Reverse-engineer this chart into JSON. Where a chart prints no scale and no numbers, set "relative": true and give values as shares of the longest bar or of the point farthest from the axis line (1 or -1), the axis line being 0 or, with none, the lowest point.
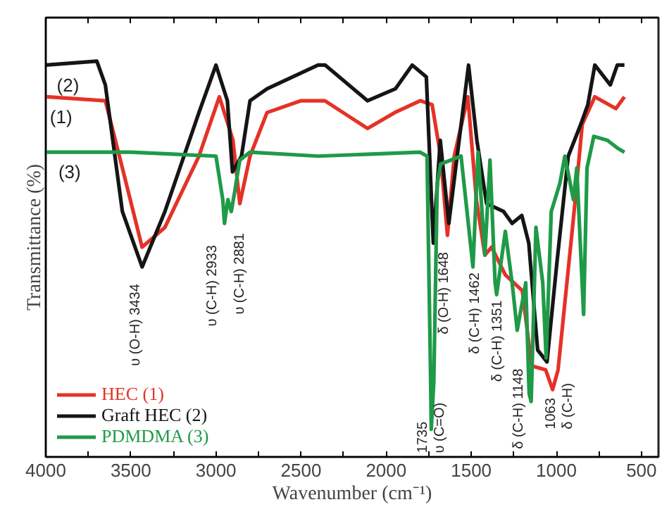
{
  "chart_data": {
    "type": "line",
    "relative": true,
    "xlabel": "Wavenumber (cm⁻¹)",
    "ylabel": "Transmittance (%)",
    "xlim": [
      4000,
      400
    ],
    "xticks": [
      4000,
      {
        "value": 3750,
        "label": null
      },
      3500,
      {
        "value": 3250,
        "label": null
      },
      3000,
      {
        "value": 2750,
        "label": null
      },
      2500,
      {
        "value": 2250,
        "label": null
      },
      2000,
      {
        "value": 1750,
        "label": null
      },
      1500,
      {
        "value": 1250,
        "label": null
      },
      1000,
      {
        "value": 750,
        "label": null
      },
      500
    ],
    "grid": false,
    "legend": "bottom left",
    "line_style": "solid",
    "marker": "none",
    "series": [
      {
        "name": "HEC (1)",
        "color": "#e53228",
        "x": [
          4000,
          3650,
          3550,
          3434,
          3300,
          3100,
          2980,
          2900,
          2860,
          2800,
          2700,
          2500,
          2360,
          2110,
          1950,
          1800,
          1730,
          1680,
          1640,
          1600,
          1520,
          1470,
          1420,
          1380,
          1300,
          1200,
          1145,
          1063,
          1022,
          990,
          898,
          848,
          774,
          650,
          600
        ],
        "values": [
          0.91,
          0.9,
          0.73,
          0.53,
          0.58,
          0.76,
          0.91,
          0.8,
          0.64,
          0.76,
          0.87,
          0.9,
          0.9,
          0.83,
          0.87,
          0.9,
          0.89,
          0.76,
          0.56,
          0.76,
          0.91,
          0.65,
          0.51,
          0.53,
          0.46,
          0.42,
          0.23,
          0.22,
          0.17,
          0.22,
          0.61,
          0.84,
          0.91,
          0.88,
          0.91
        ]
      },
      {
        "name": "Graft HEC (2)",
        "color": "#151515",
        "x": [
          4000,
          3700,
          3650,
          3550,
          3434,
          3300,
          3100,
          3000,
          2933,
          2903,
          2850,
          2800,
          2700,
          2600,
          2400,
          2358,
          2110,
          1946,
          1847,
          1764,
          1723,
          1682,
          1632,
          1516,
          1467,
          1410,
          1310,
          1260,
          1203,
          1162,
          1110,
          1055,
          997,
          930,
          857,
          815,
          774,
          683,
          642,
          600
        ],
        "values": [
          0.99,
          1.0,
          0.94,
          0.62,
          0.48,
          0.62,
          0.87,
          0.99,
          0.9,
          0.72,
          0.76,
          0.9,
          0.93,
          0.95,
          0.99,
          0.99,
          0.9,
          0.93,
          0.99,
          0.96,
          0.54,
          0.8,
          0.59,
          0.99,
          0.8,
          0.64,
          0.62,
          0.59,
          0.61,
          0.54,
          0.27,
          0.24,
          0.49,
          0.76,
          0.84,
          0.89,
          0.99,
          0.94,
          0.99,
          0.99
        ]
      },
      {
        "name": "PDMDMA (3)",
        "color": "#1f9a48",
        "x": [
          4000,
          3500,
          3000,
          2960,
          2950,
          2930,
          2910,
          2890,
          2860,
          2800,
          2400,
          1800,
          1760,
          1740,
          1735,
          1720,
          1700,
          1680,
          1560,
          1490,
          1460,
          1420,
          1390,
          1360,
          1351,
          1300,
          1260,
          1230,
          1180,
          1160,
          1148,
          1120,
          1080,
          1060,
          1030,
          980,
          950,
          900,
          880,
          840,
          820,
          780,
          700,
          640,
          600
        ],
        "values": [
          0.77,
          0.77,
          0.76,
          0.65,
          0.59,
          0.65,
          0.62,
          0.67,
          0.75,
          0.77,
          0.76,
          0.77,
          0.76,
          0.23,
          0.07,
          0.19,
          0.69,
          0.74,
          0.76,
          0.48,
          0.77,
          0.51,
          0.75,
          0.44,
          0.41,
          0.57,
          0.44,
          0.32,
          0.44,
          0.16,
          0.14,
          0.58,
          0.44,
          0.25,
          0.62,
          0.69,
          0.76,
          0.65,
          0.73,
          0.36,
          0.73,
          0.81,
          0.8,
          0.78,
          0.77
        ]
      }
    ],
    "annotations": [
      "(2)",
      "(1)",
      "(3)",
      "υ (O-H)  3434",
      "υ (C-H)  2933",
      "υ (C-H)  2881",
      "1735\nυ (C=O)",
      "δ (O-H)  1648",
      "δ (C-H)  1462",
      "δ (C-H)  1351",
      "δ (C-H)  1148",
      "1063\nδ (C-H)"
    ]
  }
}
